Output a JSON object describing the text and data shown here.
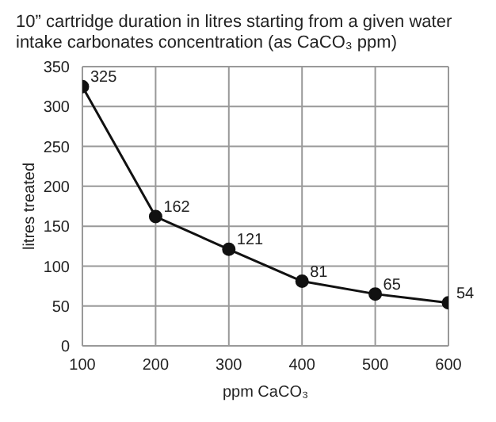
{
  "chart_data": {
    "type": "line",
    "title": "10” cartridge duration in litres starting from a given water intake carbonates concentration (as CaCO₃ ppm)",
    "xlabel": "ppm CaCO₃",
    "ylabel": "litres treated",
    "x": [
      100,
      200,
      300,
      400,
      500,
      600
    ],
    "series": [
      {
        "color": "#111111",
        "values": [
          325,
          162,
          121,
          81,
          65,
          54
        ]
      }
    ],
    "xlim": [
      100,
      600
    ],
    "xticks": [
      100,
      200,
      300,
      400,
      500,
      600
    ],
    "ylim": [
      0,
      350
    ],
    "yticks": [
      0,
      50,
      100,
      150,
      200,
      250,
      300,
      350
    ],
    "grid": true,
    "marker": "circle",
    "line_style": "solid",
    "data_labels": true
  }
}
